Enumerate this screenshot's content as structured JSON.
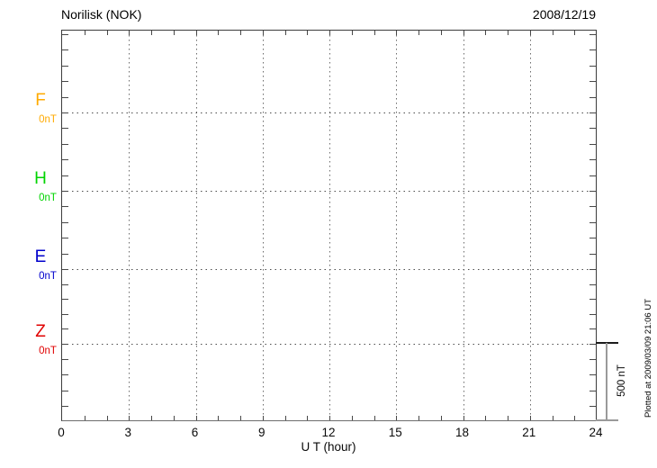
{
  "header": {
    "title": "Norilisk (NOK)",
    "date": "2008/12/19"
  },
  "chart_data": {
    "type": "line",
    "title": "Norilisk (NOK)",
    "date": "2008/12/19",
    "xlabel": "U T (hour)",
    "xlim": [
      0,
      24
    ],
    "x_ticks": [
      0,
      3,
      6,
      9,
      12,
      15,
      18,
      21,
      24
    ],
    "x_minor_step_hours": 1,
    "y_minor_step_nT": 100,
    "channel_offset_nT": 500,
    "grid": "dotted, vertical every 3 hours, horizontal at each channel baseline",
    "channels": [
      {
        "name": "F",
        "offset_label": "0nT",
        "color": "#FFAA00",
        "series": []
      },
      {
        "name": "H",
        "offset_label": "0nT",
        "color": "#00D400",
        "series": []
      },
      {
        "name": "E",
        "offset_label": "0nT",
        "color": "#0000CC",
        "series": []
      },
      {
        "name": "Z",
        "offset_label": "0nT",
        "color": "#E00000",
        "series": []
      }
    ],
    "scale_bar": {
      "label": "500 nT",
      "value_nT": 500
    }
  },
  "footer": {
    "plotted_at": "Plotted at 2009/03/09 21:06 UT"
  }
}
